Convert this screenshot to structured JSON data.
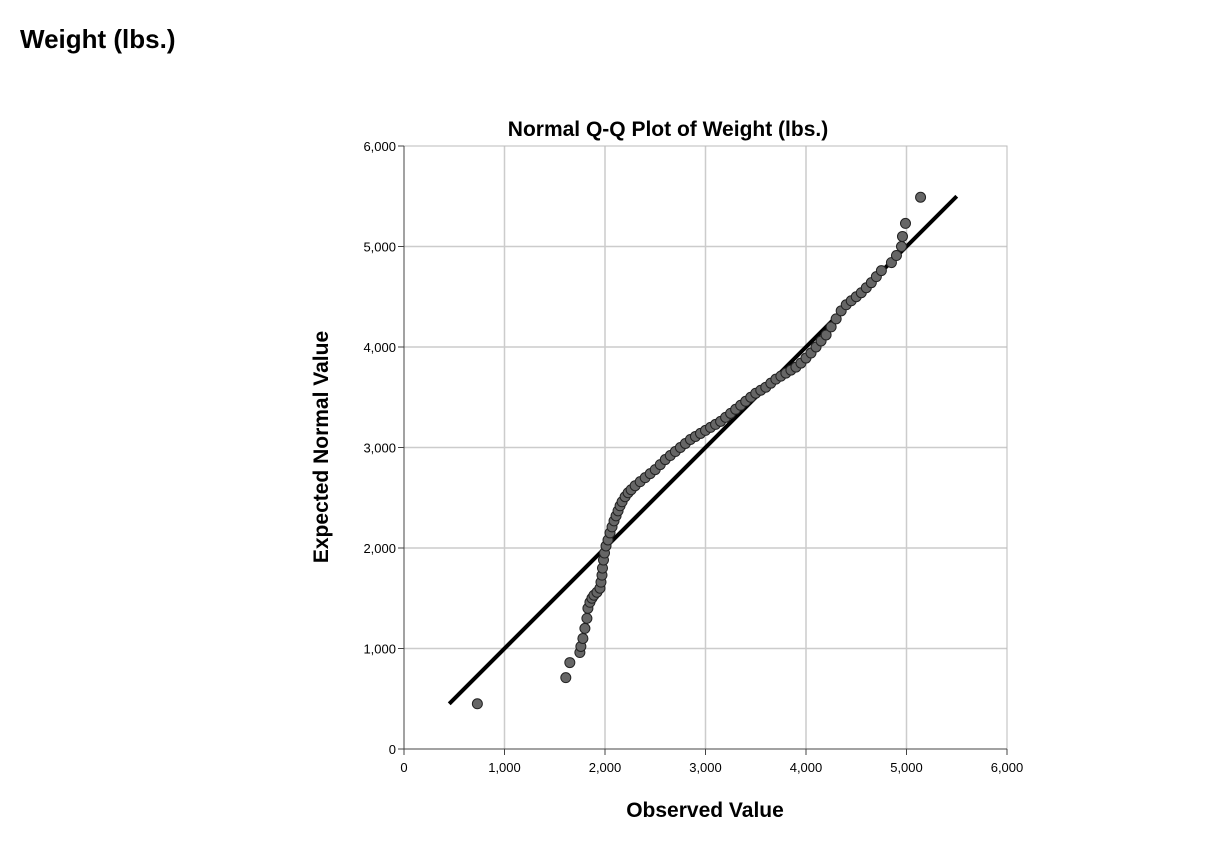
{
  "page": {
    "section_title": "Weight (lbs.)"
  },
  "chart_data": {
    "type": "scatter",
    "title": "Normal Q-Q Plot of Weight (lbs.)",
    "xlabel": "Observed Value",
    "ylabel": "Expected Normal Value",
    "xlim": [
      0,
      6000
    ],
    "ylim": [
      0,
      6000
    ],
    "xticks": [
      0,
      1000,
      2000,
      3000,
      4000,
      5000,
      6000
    ],
    "yticks": [
      0,
      1000,
      2000,
      3000,
      4000,
      5000,
      6000
    ],
    "xtick_labels": [
      "0",
      "1,000",
      "2,000",
      "3,000",
      "4,000",
      "5,000",
      "6,000"
    ],
    "ytick_labels": [
      "0",
      "1,000",
      "2,000",
      "3,000",
      "4,000",
      "5,000",
      "6,000"
    ],
    "grid": true,
    "reference_line": {
      "x": [
        450,
        5500
      ],
      "y": [
        450,
        5500
      ]
    },
    "colors": {
      "points": "#666666",
      "point_edge": "#222222",
      "line": "#000000",
      "grid": "#cccccc"
    },
    "series": [
      {
        "x": [
          730,
          1610,
          1650,
          1750,
          1760,
          1780,
          1800,
          1820,
          1830,
          1850,
          1870,
          1890,
          1920,
          1950,
          1960,
          1970,
          1975,
          1985,
          1995,
          2010,
          2030,
          2050,
          2070,
          2090,
          2110,
          2130,
          2150,
          2170,
          2200,
          2230,
          2260,
          2300,
          2350,
          2400,
          2450,
          2500,
          2550,
          2600,
          2650,
          2700,
          2750,
          2800,
          2850,
          2900,
          2950,
          3000,
          3050,
          3100,
          3150,
          3200,
          3250,
          3300,
          3350,
          3400,
          3450,
          3500,
          3550,
          3600,
          3650,
          3700,
          3750,
          3800,
          3850,
          3900,
          3950,
          4000,
          4050,
          4100,
          4150,
          4200,
          4250,
          4300,
          4350,
          4400,
          4450,
          4500,
          4550,
          4600,
          4650,
          4700,
          4750,
          4850,
          4900,
          4950,
          4960,
          4990,
          5140
        ],
        "y": [
          450,
          710,
          860,
          960,
          1020,
          1100,
          1200,
          1300,
          1400,
          1460,
          1500,
          1530,
          1560,
          1600,
          1660,
          1730,
          1800,
          1880,
          1950,
          2020,
          2080,
          2150,
          2210,
          2270,
          2320,
          2370,
          2420,
          2460,
          2510,
          2550,
          2580,
          2620,
          2660,
          2700,
          2740,
          2780,
          2830,
          2880,
          2920,
          2960,
          3000,
          3040,
          3080,
          3110,
          3140,
          3170,
          3200,
          3230,
          3260,
          3300,
          3340,
          3380,
          3420,
          3460,
          3500,
          3540,
          3570,
          3600,
          3640,
          3680,
          3710,
          3740,
          3770,
          3800,
          3840,
          3890,
          3940,
          4000,
          4060,
          4120,
          4200,
          4280,
          4360,
          4420,
          4460,
          4500,
          4540,
          4590,
          4640,
          4700,
          4760,
          4840,
          4910,
          5000,
          5100,
          5230,
          5490
        ]
      }
    ]
  }
}
